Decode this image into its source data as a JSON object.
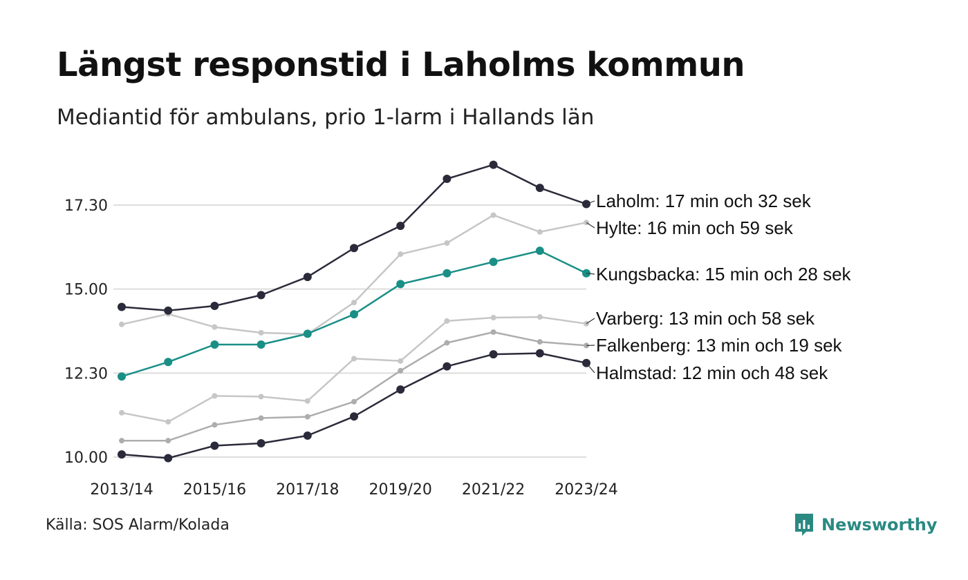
{
  "title": "Längst responstid i Laholms kommun",
  "subtitle": "Mediantid för ambulans, prio 1-larm i Hallands län",
  "source": "Källa: SOS Alarm/Kolada",
  "brand": {
    "name": "Newsworthy",
    "icon": "newsworthy-logo-icon",
    "color": "#2a8a82"
  },
  "chart_data": {
    "type": "line",
    "title": "Längst responstid i Laholms kommun",
    "subtitle": "Mediantid för ambulans, prio 1-larm i Hallands län",
    "xlabel": "",
    "ylabel": "",
    "x": [
      "2013/14",
      "2014/15",
      "2015/16",
      "2016/17",
      "2017/18",
      "2018/19",
      "2019/20",
      "2020/21",
      "2021/22",
      "2022/23",
      "2023/24"
    ],
    "x_tick_labels": [
      "2013/14",
      "2015/16",
      "2017/18",
      "2019/20",
      "2021/22",
      "2023/24"
    ],
    "y_ticks": [
      10,
      12.5,
      15,
      17.5
    ],
    "y_tick_labels": [
      "10.00",
      "12.30",
      "15.00",
      "17.30"
    ],
    "ylim": [
      10,
      18.8
    ],
    "grid": "horizontal",
    "legend": "direct labels at line ends",
    "series": [
      {
        "name": "Laholm",
        "label": "Laholm: 17 min och 32 sek",
        "color": "#2b2a3a",
        "style": "dark",
        "values": [
          14.47,
          14.36,
          14.5,
          14.82,
          15.36,
          16.22,
          16.88,
          18.28,
          18.7,
          18.01,
          17.53
        ]
      },
      {
        "name": "Hylte",
        "label": "Hylte: 16 min och 59 sek",
        "color": "#c6c6c6",
        "style": "light",
        "values": [
          13.95,
          14.26,
          13.87,
          13.7,
          13.66,
          14.6,
          16.04,
          16.37,
          17.2,
          16.7,
          16.98
        ]
      },
      {
        "name": "Kungsbacka",
        "label": "Kungsbacka: 15 min och 28 sek",
        "color": "#1a8f86",
        "style": "accent",
        "values": [
          12.4,
          12.83,
          13.35,
          13.35,
          13.67,
          14.25,
          15.15,
          15.47,
          15.81,
          16.14,
          15.47
        ]
      },
      {
        "name": "Varberg",
        "label": "Varberg: 13 min och 58 sek",
        "color": "#c6c6c6",
        "style": "light",
        "values": [
          11.32,
          11.05,
          11.82,
          11.8,
          11.67,
          12.93,
          12.86,
          14.05,
          14.15,
          14.17,
          13.97
        ]
      },
      {
        "name": "Falkenberg",
        "label": "Falkenberg: 13 min och 19 sek",
        "color": "#adadad",
        "style": "mid",
        "values": [
          10.49,
          10.49,
          10.96,
          11.16,
          11.2,
          11.65,
          12.57,
          13.4,
          13.72,
          13.43,
          13.32
        ]
      },
      {
        "name": "Halmstad",
        "label": "Halmstad: 12 min och 48 sek",
        "color": "#2b2a3a",
        "style": "dark",
        "values": [
          10.08,
          9.97,
          10.34,
          10.41,
          10.64,
          11.21,
          12.01,
          12.7,
          13.06,
          13.09,
          12.8
        ]
      }
    ]
  }
}
